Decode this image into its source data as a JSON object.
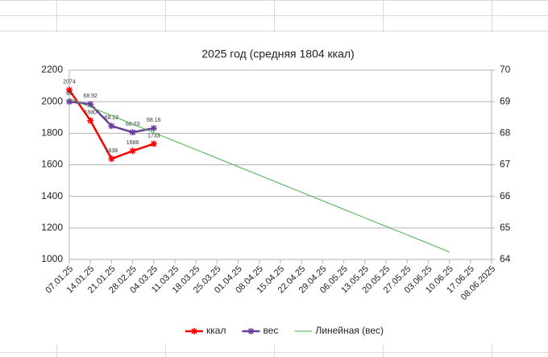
{
  "chart_data": {
    "type": "line",
    "title": "2025 год (средняя 1804 ккал)",
    "categories": [
      "07.01.25",
      "14.01.25",
      "21.01.25",
      "28.02.25",
      "04.03.25",
      "11.03.25",
      "18.03.25",
      "25.03.25",
      "01.04.25",
      "08.04.25",
      "15.04.25",
      "22.04.25",
      "29.04.25",
      "06.05.25",
      "13.05.25",
      "20.05.25",
      "27.05.25",
      "03.06.25",
      "10.06.25",
      "17.06.25",
      "08.06.2025"
    ],
    "series": [
      {
        "name": "ккал",
        "color": "#ff0000",
        "marker": true,
        "values": [
          2074,
          1880,
          1638,
          1688,
          1733,
          null,
          null,
          null,
          null,
          null,
          null,
          null,
          null,
          null,
          null,
          null,
          null,
          null,
          null,
          null,
          null
        ]
      },
      {
        "name": "вес",
        "color": "#6a3d9a",
        "axis": "y2",
        "marker": true,
        "values": [
          69,
          68.92,
          68.23,
          68.03,
          68.16,
          null,
          null,
          null,
          null,
          null,
          null,
          null,
          null,
          null,
          null,
          null,
          null,
          null,
          null,
          null,
          null
        ]
      },
      {
        "name": "Линейная (вес)",
        "color": "#4caf50",
        "axis": "y2",
        "marker": false,
        "values": [
          69.1,
          68.83,
          68.56,
          68.29,
          68.02,
          67.75,
          67.48,
          67.21,
          66.94,
          66.67,
          66.4,
          66.13,
          65.86,
          65.59,
          65.32,
          65.05,
          64.78,
          64.51,
          64.24,
          null,
          null
        ]
      }
    ],
    "ylim": [
      1000,
      2200
    ],
    "yticks": [
      1000,
      1200,
      1400,
      1600,
      1800,
      2000,
      2200
    ],
    "y2lim": [
      64,
      70
    ],
    "y2ticks": [
      64,
      65,
      66,
      67,
      68,
      69,
      70
    ],
    "grid": true,
    "legend": "bottom"
  }
}
